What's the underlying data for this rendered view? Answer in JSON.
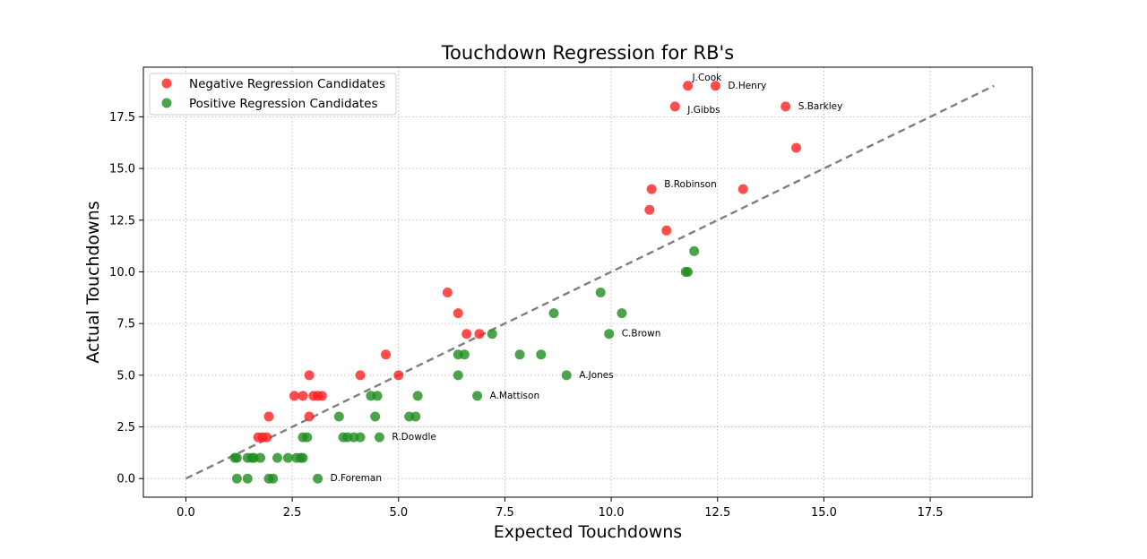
{
  "chart_data": {
    "type": "scatter",
    "title": "Touchdown Regression for RB's",
    "xlabel": "Expected Touchdowns",
    "ylabel": "Actual Touchdowns",
    "xlim": [
      -1,
      19.9
    ],
    "ylim": [
      -0.9,
      19.9
    ],
    "xticks": [
      0.0,
      2.5,
      5.0,
      7.5,
      10.0,
      12.5,
      15.0,
      17.5
    ],
    "yticks": [
      0.0,
      2.5,
      5.0,
      7.5,
      10.0,
      12.5,
      15.0,
      17.5
    ],
    "xtick_labels": [
      "0.0",
      "2.5",
      "5.0",
      "7.5",
      "10.0",
      "12.5",
      "15.0",
      "17.5"
    ],
    "ytick_labels": [
      "0.0",
      "2.5",
      "5.0",
      "7.5",
      "10.0",
      "12.5",
      "15.0",
      "17.5"
    ],
    "grid": true,
    "legend_position": "top-left",
    "reference_line": {
      "x": [
        0,
        19
      ],
      "y": [
        0,
        19
      ],
      "color": "#7f7f7f",
      "style": "dashed"
    },
    "series": [
      {
        "name": "Negative Regression Candidates",
        "color": "#ff2020",
        "points": [
          [
            11.8,
            19
          ],
          [
            12.45,
            19
          ],
          [
            11.5,
            18
          ],
          [
            14.1,
            18
          ],
          [
            14.35,
            16
          ],
          [
            10.95,
            14
          ],
          [
            13.1,
            14
          ],
          [
            10.9,
            13
          ],
          [
            11.3,
            12
          ],
          [
            6.15,
            9
          ],
          [
            6.4,
            8
          ],
          [
            6.6,
            7
          ],
          [
            6.9,
            7
          ],
          [
            4.7,
            6
          ],
          [
            2.9,
            5
          ],
          [
            4.1,
            5
          ],
          [
            5.0,
            5
          ],
          [
            2.55,
            4
          ],
          [
            2.75,
            4
          ],
          [
            3.0,
            4
          ],
          [
            3.1,
            4
          ],
          [
            3.2,
            4
          ],
          [
            1.95,
            3
          ],
          [
            2.9,
            3
          ],
          [
            1.7,
            2
          ],
          [
            1.8,
            2
          ],
          [
            1.9,
            2
          ]
        ]
      },
      {
        "name": "Positive Regression Candidates",
        "color": "#1e8c1e",
        "points": [
          [
            11.95,
            11
          ],
          [
            11.75,
            10
          ],
          [
            11.8,
            10
          ],
          [
            9.75,
            9
          ],
          [
            8.65,
            8
          ],
          [
            10.25,
            8
          ],
          [
            7.2,
            7
          ],
          [
            9.95,
            7
          ],
          [
            6.4,
            6
          ],
          [
            6.55,
            6
          ],
          [
            7.85,
            6
          ],
          [
            8.35,
            6
          ],
          [
            6.4,
            5
          ],
          [
            8.95,
            5
          ],
          [
            4.35,
            4
          ],
          [
            4.5,
            4
          ],
          [
            5.45,
            4
          ],
          [
            6.85,
            4
          ],
          [
            3.6,
            3
          ],
          [
            4.45,
            3
          ],
          [
            5.25,
            3
          ],
          [
            5.4,
            3
          ],
          [
            2.75,
            2
          ],
          [
            2.85,
            2
          ],
          [
            3.7,
            2
          ],
          [
            3.8,
            2
          ],
          [
            3.95,
            2
          ],
          [
            4.1,
            2
          ],
          [
            4.55,
            2
          ],
          [
            1.15,
            1
          ],
          [
            1.2,
            1
          ],
          [
            1.45,
            1
          ],
          [
            1.55,
            1
          ],
          [
            1.6,
            1
          ],
          [
            1.75,
            1
          ],
          [
            2.15,
            1
          ],
          [
            2.4,
            1
          ],
          [
            2.6,
            1
          ],
          [
            2.7,
            1
          ],
          [
            2.75,
            1
          ],
          [
            1.2,
            0
          ],
          [
            1.45,
            0
          ],
          [
            1.95,
            0
          ],
          [
            2.05,
            0
          ],
          [
            3.1,
            0
          ]
        ]
      }
    ],
    "annotations": [
      {
        "text": "J.Cook",
        "x": 11.8,
        "y": 19
      },
      {
        "text": "D.Henry",
        "x": 12.45,
        "y": 19
      },
      {
        "text": "J.Gibbs",
        "x": 11.5,
        "y": 18
      },
      {
        "text": "S.Barkley",
        "x": 14.1,
        "y": 18
      },
      {
        "text": "B.Robinson",
        "x": 10.95,
        "y": 14
      },
      {
        "text": "C.Brown",
        "x": 9.95,
        "y": 7
      },
      {
        "text": "A.Jones",
        "x": 8.95,
        "y": 5
      },
      {
        "text": "A.Mattison",
        "x": 6.85,
        "y": 4
      },
      {
        "text": "R.Dowdle",
        "x": 4.55,
        "y": 2
      },
      {
        "text": "D.Foreman",
        "x": 3.1,
        "y": 0
      }
    ]
  }
}
